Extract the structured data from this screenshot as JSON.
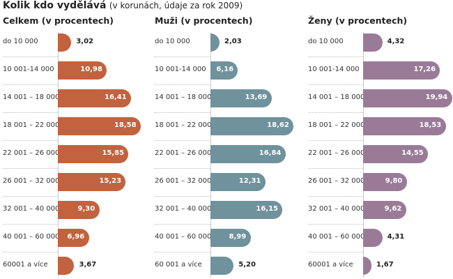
{
  "chart_data": {
    "type": "bar",
    "title": "Kolik kdo vydělává",
    "subtitle": "(v korunách, údaje za rok 2009)",
    "panels": [
      {
        "title": "Celkem (v procentech)",
        "color": "#c2623e",
        "categories": [
          "do  10 000",
          "10 001-14 000",
          "14 001 – 18 000",
          "18 001 – 22 000",
          "22 001 – 26 000",
          "26 001 – 32 000",
          "32 001 – 40 000",
          "40 001 – 60 000",
          "60001 a více"
        ],
        "values": [
          3.02,
          10.98,
          16.41,
          18.58,
          15.85,
          15.23,
          9.3,
          6.96,
          3.67
        ],
        "labels": [
          "3,02",
          "10,98",
          "16,41",
          "18,58",
          "15,85",
          "15,23",
          "9,30",
          "6,96",
          "3,67"
        ]
      },
      {
        "title": "Muži (v procentech)",
        "color": "#6f929c",
        "categories": [
          "do  10 000",
          "10 001-14 000",
          "14 001 – 18 000",
          "18 001 – 22 000",
          "22 001 – 26 000",
          "26 001 – 32 000",
          "32 001 – 40 000",
          "40 001 – 60 000",
          "60 001 a více"
        ],
        "values": [
          2.03,
          6.16,
          13.69,
          18.62,
          16.84,
          12.31,
          16.15,
          8.99,
          5.2
        ],
        "labels": [
          "2,03",
          "6,16",
          "13,69",
          "18,62",
          "16,84",
          "12,31",
          "16,15",
          "8,99",
          "5,20"
        ]
      },
      {
        "title": "Ženy (v procentech)",
        "color": "#9a7b97",
        "categories": [
          "do  10 000",
          "10 001-14 000",
          "14 001 – 18 000",
          "18 001 – 22 000",
          "22 001 – 26 000",
          "26 001 – 32 000",
          "32 001 – 40 000",
          "40 001 – 60 000",
          "60001 a více"
        ],
        "values": [
          4.32,
          17.26,
          19.94,
          18.53,
          14.55,
          9.8,
          9.62,
          4.31,
          1.67
        ],
        "labels": [
          "4,32",
          "17,26",
          "19,94",
          "18,53",
          "14,55",
          "9,80",
          "9,62",
          "4,31",
          "1,67"
        ]
      }
    ]
  }
}
